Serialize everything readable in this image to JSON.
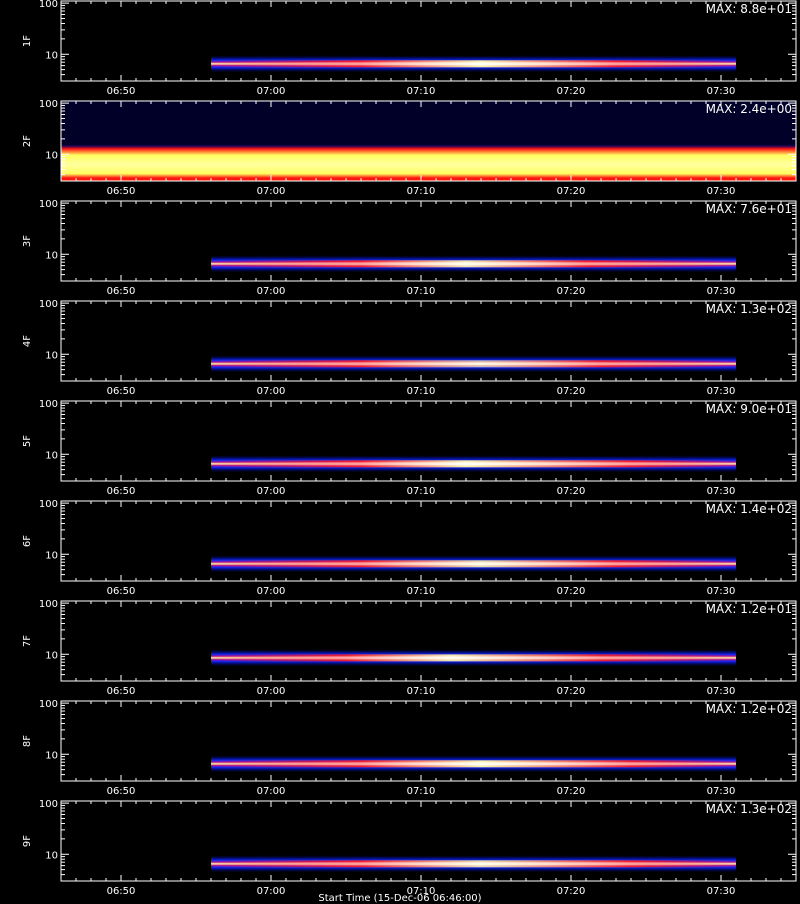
{
  "chart_data": [
    {
      "type": "heatmap",
      "ylabel": "1F",
      "max_label": "MAX: 8.8e+01",
      "yticks": [
        "10",
        "100"
      ],
      "xticks": [
        "06:50",
        "07:00",
        "07:10",
        "07:20",
        "07:30"
      ],
      "ylim": [
        3,
        110
      ],
      "band": {
        "start": "06:56",
        "end": "07:31",
        "peak": "07:14",
        "center": 6.5,
        "bright_start": "07:06",
        "bright_end": "07:23",
        "intensity": 0.95
      }
    },
    {
      "type": "heatmap",
      "ylabel": "2F",
      "max_label": "MAX: 2.4e+00",
      "yticks": [
        "10",
        "100"
      ],
      "xticks": [
        "06:50",
        "07:00",
        "07:10",
        "07:20",
        "07:30"
      ],
      "ylim": [
        3,
        110
      ],
      "band": {
        "start": "06:46",
        "end": "07:35",
        "peak": "07:10",
        "center": 7,
        "bright_start": "06:46",
        "bright_end": "07:35",
        "intensity": 1.0,
        "uniform": true
      }
    },
    {
      "type": "heatmap",
      "ylabel": "3F",
      "max_label": "MAX: 7.6e+01",
      "yticks": [
        "10",
        "100"
      ],
      "xticks": [
        "06:50",
        "07:00",
        "07:10",
        "07:20",
        "07:30"
      ],
      "ylim": [
        3,
        110
      ],
      "band": {
        "start": "06:56",
        "end": "07:31",
        "peak": "07:13",
        "center": 6.5,
        "bright_start": "07:06",
        "bright_end": "07:21",
        "intensity": 0.9
      }
    },
    {
      "type": "heatmap",
      "ylabel": "4F",
      "max_label": "MAX: 1.3e+02",
      "yticks": [
        "10",
        "100"
      ],
      "xticks": [
        "06:50",
        "07:00",
        "07:10",
        "07:20",
        "07:30"
      ],
      "ylim": [
        3,
        110
      ],
      "band": {
        "start": "06:56",
        "end": "07:31",
        "peak": "07:14",
        "center": 6.5,
        "bright_start": "07:06",
        "bright_end": "07:22",
        "intensity": 0.7
      }
    },
    {
      "type": "heatmap",
      "ylabel": "5F",
      "max_label": "MAX: 9.0e+01",
      "yticks": [
        "10",
        "100"
      ],
      "xticks": [
        "06:50",
        "07:00",
        "07:10",
        "07:20",
        "07:30"
      ],
      "ylim": [
        3,
        110
      ],
      "band": {
        "start": "06:56",
        "end": "07:31",
        "peak": "07:13",
        "center": 6.5,
        "bright_start": "07:06",
        "bright_end": "07:24",
        "intensity": 0.95
      }
    },
    {
      "type": "heatmap",
      "ylabel": "6F",
      "max_label": "MAX: 1.4e+02",
      "yticks": [
        "10",
        "100"
      ],
      "xticks": [
        "06:50",
        "07:00",
        "07:10",
        "07:20",
        "07:30"
      ],
      "ylim": [
        3,
        110
      ],
      "band": {
        "start": "06:56",
        "end": "07:31",
        "peak": "07:14",
        "center": 6.5,
        "bright_start": "07:06",
        "bright_end": "07:23",
        "intensity": 0.85
      }
    },
    {
      "type": "heatmap",
      "ylabel": "7F",
      "max_label": "MAX: 1.2e+01",
      "yticks": [
        "10",
        "100"
      ],
      "xticks": [
        "06:50",
        "07:00",
        "07:10",
        "07:20",
        "07:30"
      ],
      "ylim": [
        3,
        110
      ],
      "band": {
        "start": "06:56",
        "end": "07:31",
        "peak": "07:12",
        "center": 8.5,
        "bright_start": "07:05",
        "bright_end": "07:22",
        "intensity": 0.9
      }
    },
    {
      "type": "heatmap",
      "ylabel": "8F",
      "max_label": "MAX: 1.2e+02",
      "yticks": [
        "10",
        "100"
      ],
      "xticks": [
        "06:50",
        "07:00",
        "07:10",
        "07:20",
        "07:30"
      ],
      "ylim": [
        3,
        110
      ],
      "band": {
        "start": "06:56",
        "end": "07:31",
        "peak": "07:14",
        "center": 6.5,
        "bright_start": "07:06",
        "bright_end": "07:24",
        "intensity": 0.95
      }
    },
    {
      "type": "heatmap",
      "ylabel": "9F",
      "max_label": "MAX: 1.3e+02",
      "yticks": [
        "10",
        "100"
      ],
      "xticks": [
        "06:50",
        "07:00",
        "07:10",
        "07:20",
        "07:30"
      ],
      "ylim": [
        3,
        110
      ],
      "band": {
        "start": "06:56",
        "end": "07:31",
        "peak": "07:14",
        "center": 6.5,
        "bright_start": "07:06",
        "bright_end": "07:24",
        "intensity": 0.85
      }
    }
  ],
  "time_range": {
    "start": "06:46",
    "end": "07:35"
  },
  "xlabel": "Start Time (15-Dec-06 06:46:00)",
  "colors": {
    "background": "#000000",
    "frame": "#ffffff",
    "band_outer": "#1020ff",
    "band_mid": "#ff1010",
    "band_core": "#ffffa0"
  }
}
